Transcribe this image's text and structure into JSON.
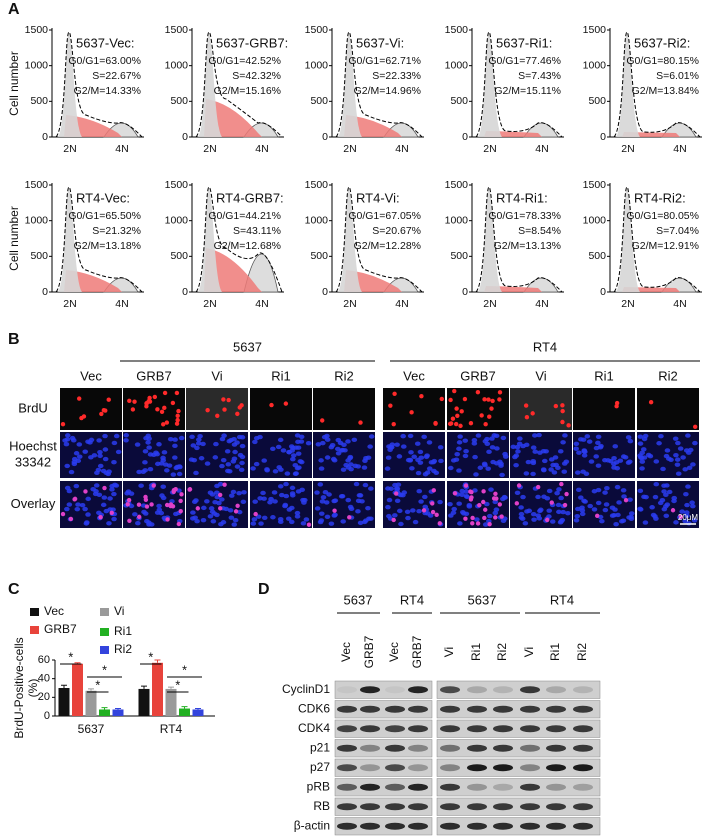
{
  "panel_labels": [
    "A",
    "B",
    "C",
    "D"
  ],
  "flow": {
    "ylabel": "Cell number",
    "yticks": [
      1500,
      1000,
      500,
      0
    ],
    "xticks": [
      "2N",
      "4N"
    ],
    "plots": [
      {
        "title": "5637-Vec:",
        "stats": [
          "G0/G1=63.00%",
          "S=22.67%",
          "G2/M=14.33%"
        ]
      },
      {
        "title": "5637-GRB7:",
        "stats": [
          "G0/G1=42.52%",
          "S=42.32%",
          "G2/M=15.16%"
        ]
      },
      {
        "title": "5637-Vi:",
        "stats": [
          "G0/G1=62.71%",
          "S=22.33%",
          "G2/M=14.96%"
        ]
      },
      {
        "title": "5637-Ri1:",
        "stats": [
          "G0/G1=77.46%",
          "S=7.43%",
          "G2/M=15.11%"
        ]
      },
      {
        "title": "5637-Ri2:",
        "stats": [
          "G0/G1=80.15%",
          "S=6.01%",
          "G2/M=13.84%"
        ]
      },
      {
        "title": "RT4-Vec:",
        "stats": [
          "G0/G1=65.50%",
          "S=21.32%",
          "G2/M=13.18%"
        ]
      },
      {
        "title": "RT4-GRB7:",
        "stats": [
          "G0/G1=44.21%",
          "S=43.11%",
          "G2/M=12.68%"
        ]
      },
      {
        "title": "RT4-Vi:",
        "stats": [
          "G0/G1=67.05%",
          "S=20.67%",
          "G2/M=12.28%"
        ]
      },
      {
        "title": "RT4-Ri1:",
        "stats": [
          "G0/G1=78.33%",
          "S=8.54%",
          "G2/M=13.13%"
        ]
      },
      {
        "title": "RT4-Ri2:",
        "stats": [
          "G0/G1=80.05%",
          "S=7.04%",
          "G2/M=12.91%"
        ]
      }
    ]
  },
  "imaging": {
    "groups": [
      "5637",
      "RT4"
    ],
    "columns": [
      "Vec",
      "GRB7",
      "Vi",
      "Ri1",
      "Ri2",
      "Vec",
      "GRB7",
      "Vi",
      "Ri1",
      "Ri2"
    ],
    "rows": [
      [
        "BrdU"
      ],
      [
        "Hoechst",
        "33342"
      ],
      [
        "Overlay"
      ]
    ],
    "scale_bar": "20μM"
  },
  "chart_data": {
    "type": "bar",
    "ylabel": [
      "BrdU-Positive-cells",
      "(%)"
    ],
    "categories": [
      "5637",
      "RT4"
    ],
    "series": [
      {
        "name": "Vec",
        "color": "#111111",
        "values": [
          30,
          29
        ],
        "errors": [
          3,
          3
        ]
      },
      {
        "name": "GRB7",
        "color": "#e8433b",
        "values": [
          56,
          57
        ],
        "errors": [
          1,
          3
        ]
      },
      {
        "name": "Vi",
        "color": "#9a9a9a",
        "values": [
          27,
          29
        ],
        "errors": [
          2,
          2
        ]
      },
      {
        "name": "Ri1",
        "color": "#22b022",
        "values": [
          7,
          8
        ],
        "errors": [
          2,
          2
        ]
      },
      {
        "name": "Ri2",
        "color": "#3344dd",
        "values": [
          7,
          7
        ],
        "errors": [
          1,
          1
        ]
      }
    ],
    "ylim": [
      0,
      60
    ],
    "yticks": [
      0,
      20,
      40,
      60
    ],
    "annotations": [
      "*",
      "*",
      "*",
      "*",
      "*",
      "*"
    ]
  },
  "blot": {
    "groups": [
      "5637",
      "RT4",
      "5637",
      "RT4"
    ],
    "lanes": [
      "Vec",
      "GRB7",
      "Vec",
      "GRB7",
      "Vi",
      "Ri1",
      "Ri2",
      "Vi",
      "Ri1",
      "Ri2"
    ],
    "proteins": [
      "CyclinD1",
      "CDK6",
      "CDK4",
      "p21",
      "p27",
      "pRB",
      "RB",
      "β-actin"
    ]
  }
}
